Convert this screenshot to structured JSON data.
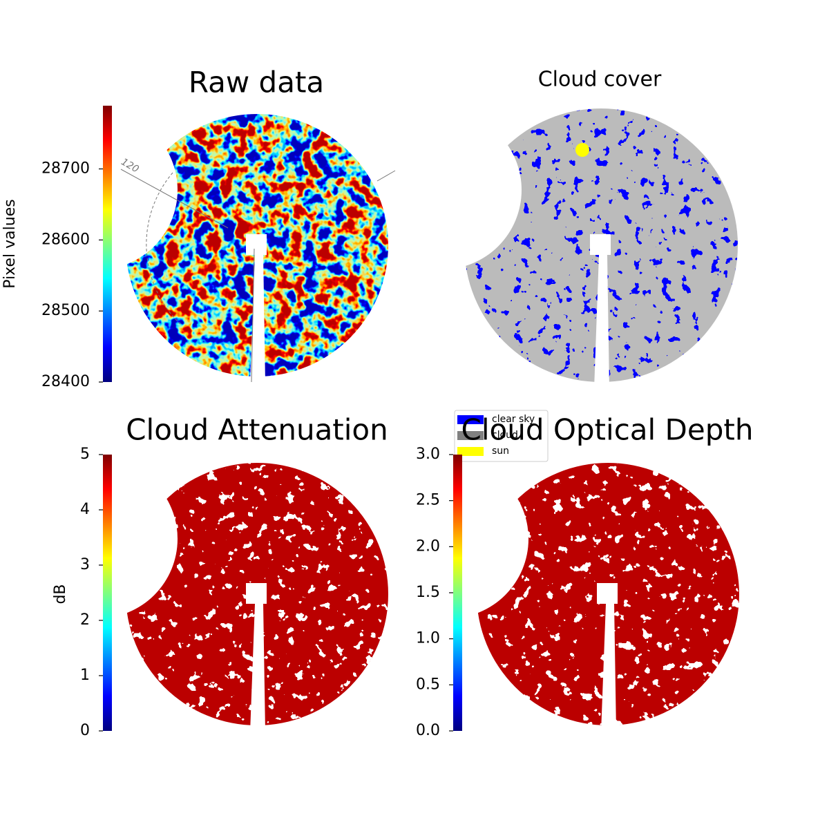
{
  "chart_data": [
    {
      "type": "image",
      "title": "Raw data",
      "colorbar_label": "Pixel values",
      "colormap": "jet",
      "ylim": [
        28400,
        28789
      ],
      "yticks": [
        28400,
        28500,
        28600,
        28700
      ],
      "annotations": [
        "120"
      ]
    },
    {
      "type": "image",
      "title": "Cloud cover",
      "legend": [
        {
          "name": "clear sky",
          "color": "#0000ff"
        },
        {
          "name": "cloud",
          "color": "#808080"
        },
        {
          "name": "sun",
          "color": "#ffff00"
        }
      ]
    },
    {
      "type": "image",
      "title": "Cloud Attenuation",
      "colorbar_label": "dB",
      "colormap": "jet",
      "ylim": [
        0,
        5
      ],
      "yticks": [
        0,
        1,
        2,
        3,
        4,
        5
      ]
    },
    {
      "type": "image",
      "title": "Cloud Optical Depth",
      "colormap": "jet",
      "ylim": [
        0,
        3
      ],
      "yticks": [
        {
          "value": 0,
          "label": "0.0"
        },
        0.5,
        {
          "value": 1,
          "label": "1.0"
        },
        1.5,
        {
          "value": 2,
          "label": "2.0"
        },
        2.5,
        {
          "value": 3,
          "label": "3.0"
        }
      ]
    }
  ]
}
